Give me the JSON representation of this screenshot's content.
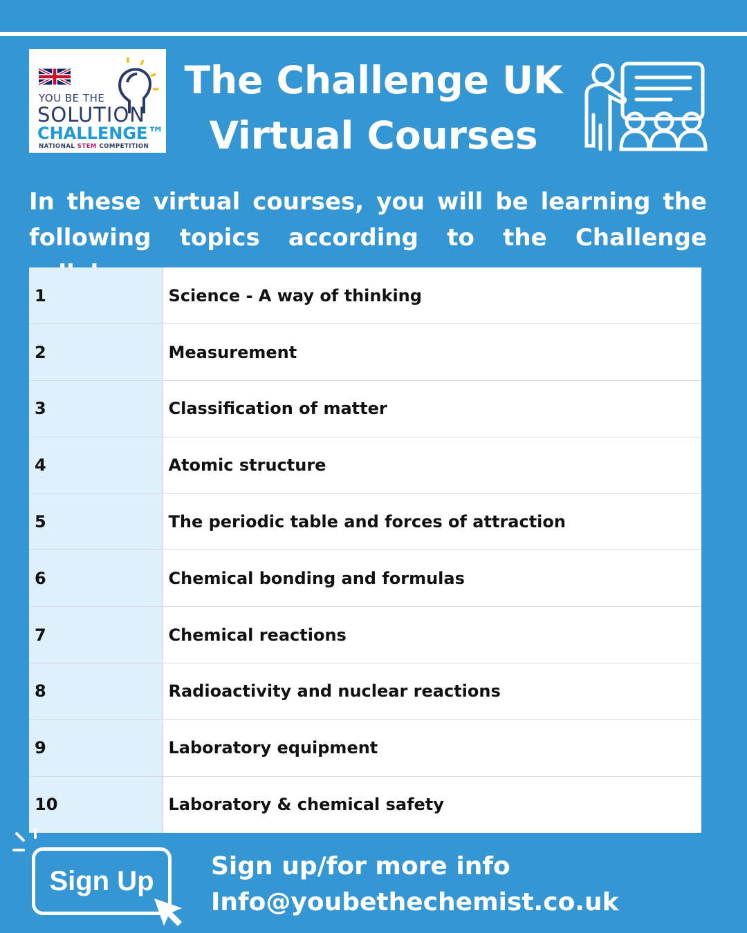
{
  "logo": {
    "line1": "YOU BE THE",
    "line2": "SOLUTION",
    "line3": "CHALLENGE™",
    "line4a": "NATIONAL ",
    "line4b": "STEM",
    "line4c": " COMPETITION"
  },
  "header": {
    "title_line1": "The Challenge UK",
    "title_line2": "Virtual Courses",
    "icon": "teacher-classroom-icon"
  },
  "intro": {
    "line1": "In these virtual courses, you will be learning the",
    "line2": "following topics according to the Challenge syllabus"
  },
  "topics": [
    {
      "num": "1",
      "topic": "Science - A way of thinking"
    },
    {
      "num": "2",
      "topic": "Measurement"
    },
    {
      "num": "3",
      "topic": "Classification of matter"
    },
    {
      "num": "4",
      "topic": "Atomic structure"
    },
    {
      "num": "5",
      "topic": "The periodic table and forces of attraction"
    },
    {
      "num": "6",
      "topic": "Chemical bonding and formulas"
    },
    {
      "num": "7",
      "topic": "Chemical reactions"
    },
    {
      "num": "8",
      "topic": "Radioactivity and nuclear reactions"
    },
    {
      "num": "9",
      "topic": "Laboratory equipment"
    },
    {
      "num": "10",
      "topic": "Laboratory & chemical safety"
    }
  ],
  "footer": {
    "button": "Sign Up",
    "line1": "Sign up/for more info",
    "line2": "Info@youbethechemist.co.uk"
  },
  "colors": {
    "background": "#3497d3",
    "first_column": "#dff0fd"
  }
}
